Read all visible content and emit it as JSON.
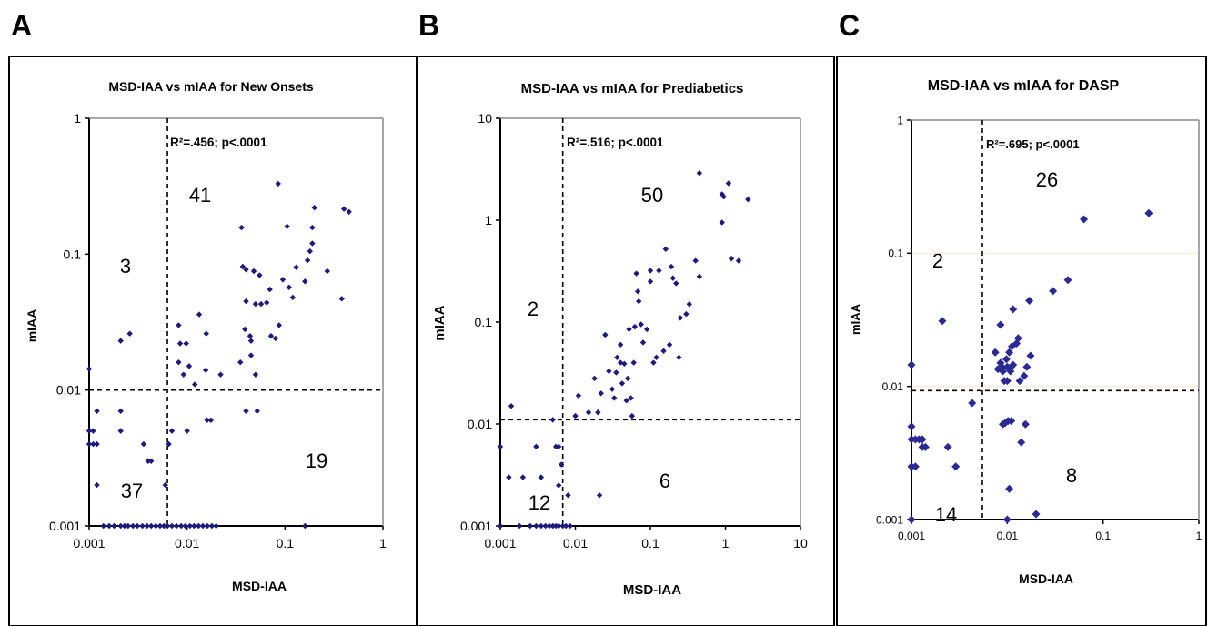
{
  "panel_letters": [
    "A",
    "B",
    "C"
  ],
  "chart_data": [
    {
      "type": "scatter",
      "title": "MSD-IAA vs mIAA for New Onsets",
      "xlabel": "MSD-IAA",
      "ylabel": "mIAA",
      "xscale": "log",
      "yscale": "log",
      "xlim": [
        0.001,
        1
      ],
      "ylim": [
        0.001,
        1
      ],
      "xticks": [
        "0.001",
        "0.01",
        "0.1",
        "1"
      ],
      "yticks": [
        "0.001",
        "0.01",
        "0.1",
        "1"
      ],
      "annotation": "R²=.456; p<.0001",
      "threshold_x": 0.0063,
      "threshold_y": 0.01,
      "quadrant_counts": [
        "41",
        "3",
        "37",
        "19"
      ],
      "marker_color": "#1f1a7a",
      "points": [
        [
          0.001,
          0.0143
        ],
        [
          0.001,
          0.005
        ],
        [
          0.001,
          0.004
        ],
        [
          0.0011,
          0.005
        ],
        [
          0.0011,
          0.004
        ],
        [
          0.0012,
          0.004
        ],
        [
          0.0012,
          0.007
        ],
        [
          0.0012,
          0.002
        ],
        [
          0.0021,
          0.023
        ],
        [
          0.0021,
          0.007
        ],
        [
          0.0021,
          0.005
        ],
        [
          0.0026,
          0.026
        ],
        [
          0.0036,
          0.004
        ],
        [
          0.004,
          0.003
        ],
        [
          0.0043,
          0.003
        ],
        [
          0.006,
          0.002
        ],
        [
          0.0065,
          0.004
        ],
        [
          0.007,
          0.005
        ],
        [
          0.0082,
          0.03
        ],
        [
          0.0082,
          0.016
        ],
        [
          0.0085,
          0.022
        ],
        [
          0.0092,
          0.013
        ],
        [
          0.0098,
          0.022
        ],
        [
          0.01,
          0.005
        ],
        [
          0.0105,
          0.015
        ],
        [
          0.012,
          0.011
        ],
        [
          0.0133,
          0.036
        ],
        [
          0.0157,
          0.026
        ],
        [
          0.0155,
          0.014
        ],
        [
          0.016,
          0.006
        ],
        [
          0.0175,
          0.006
        ],
        [
          0.022,
          0.013
        ],
        [
          0.035,
          0.016
        ],
        [
          0.036,
          0.157
        ],
        [
          0.037,
          0.081
        ],
        [
          0.039,
          0.028
        ],
        [
          0.04,
          0.077
        ],
        [
          0.04,
          0.045
        ],
        [
          0.04,
          0.007
        ],
        [
          0.044,
          0.025
        ],
        [
          0.045,
          0.023
        ],
        [
          0.045,
          0.018
        ],
        [
          0.048,
          0.075
        ],
        [
          0.05,
          0.013
        ],
        [
          0.05,
          0.043
        ],
        [
          0.052,
          0.007
        ],
        [
          0.055,
          0.07
        ],
        [
          0.057,
          0.043
        ],
        [
          0.065,
          0.044
        ],
        [
          0.07,
          0.055
        ],
        [
          0.072,
          0.025
        ],
        [
          0.08,
          0.024
        ],
        [
          0.087,
          0.03
        ],
        [
          0.085,
          0.33
        ],
        [
          0.095,
          0.065
        ],
        [
          0.105,
          0.16
        ],
        [
          0.11,
          0.057
        ],
        [
          0.12,
          0.048
        ],
        [
          0.13,
          0.08
        ],
        [
          0.16,
          0.063
        ],
        [
          0.17,
          0.09
        ],
        [
          0.18,
          0.105
        ],
        [
          0.19,
          0.12
        ],
        [
          0.19,
          0.157
        ],
        [
          0.2,
          0.22
        ],
        [
          0.27,
          0.075
        ],
        [
          0.38,
          0.047
        ],
        [
          0.4,
          0.215
        ],
        [
          0.45,
          0.205
        ],
        [
          0.16,
          0.001
        ],
        [
          0.0014,
          0.001
        ],
        [
          0.0016,
          0.001
        ],
        [
          0.0018,
          0.001
        ],
        [
          0.0021,
          0.001
        ],
        [
          0.0023,
          0.001
        ],
        [
          0.0025,
          0.001
        ],
        [
          0.0028,
          0.001
        ],
        [
          0.0031,
          0.001
        ],
        [
          0.0035,
          0.001
        ],
        [
          0.0039,
          0.001
        ],
        [
          0.0043,
          0.001
        ],
        [
          0.0048,
          0.001
        ],
        [
          0.0053,
          0.001
        ],
        [
          0.0058,
          0.001
        ],
        [
          0.0063,
          0.001
        ],
        [
          0.007,
          0.001
        ],
        [
          0.0078,
          0.001
        ],
        [
          0.0087,
          0.001
        ],
        [
          0.0096,
          0.001
        ],
        [
          0.0107,
          0.001
        ],
        [
          0.0118,
          0.001
        ],
        [
          0.0131,
          0.001
        ],
        [
          0.0145,
          0.001
        ],
        [
          0.0161,
          0.001
        ],
        [
          0.0179,
          0.001
        ],
        [
          0.0198,
          0.001
        ]
      ]
    },
    {
      "type": "scatter",
      "title": "MSD-IAA vs mIAA for Prediabetics",
      "xlabel": "MSD-IAA",
      "ylabel": "mIAA",
      "xscale": "log",
      "yscale": "log",
      "xlim": [
        0.001,
        10
      ],
      "ylim": [
        0.001,
        10
      ],
      "xticks": [
        "0.001",
        "0.01",
        "0.1",
        "1",
        "10"
      ],
      "yticks": [
        "0.001",
        "0.01",
        "0.1",
        "1",
        "10"
      ],
      "annotation": "R²=.516; p<.0001",
      "threshold_x": 0.0068,
      "threshold_y": 0.011,
      "quadrant_counts": [
        "50",
        "2",
        "12",
        "6"
      ],
      "marker_color": "#1f1a7a",
      "points": [
        [
          0.001,
          0.006
        ],
        [
          0.0013,
          0.003
        ],
        [
          0.0014,
          0.015
        ],
        [
          0.002,
          0.003
        ],
        [
          0.003,
          0.006
        ],
        [
          0.0035,
          0.003
        ],
        [
          0.005,
          0.011
        ],
        [
          0.0055,
          0.006
        ],
        [
          0.006,
          0.006
        ],
        [
          0.0065,
          0.004
        ],
        [
          0.008,
          0.002
        ],
        [
          0.006,
          0.0025
        ],
        [
          0.01,
          0.012
        ],
        [
          0.011,
          0.019
        ],
        [
          0.015,
          0.013
        ],
        [
          0.018,
          0.028
        ],
        [
          0.02,
          0.013
        ],
        [
          0.021,
          0.002
        ],
        [
          0.022,
          0.02
        ],
        [
          0.025,
          0.075
        ],
        [
          0.028,
          0.033
        ],
        [
          0.031,
          0.022
        ],
        [
          0.033,
          0.018
        ],
        [
          0.035,
          0.032
        ],
        [
          0.036,
          0.045
        ],
        [
          0.04,
          0.06
        ],
        [
          0.04,
          0.04
        ],
        [
          0.042,
          0.025
        ],
        [
          0.045,
          0.039
        ],
        [
          0.048,
          0.017
        ],
        [
          0.05,
          0.028
        ],
        [
          0.052,
          0.085
        ],
        [
          0.055,
          0.018
        ],
        [
          0.057,
          0.012
        ],
        [
          0.06,
          0.04
        ],
        [
          0.062,
          0.09
        ],
        [
          0.065,
          0.3
        ],
        [
          0.068,
          0.2
        ],
        [
          0.07,
          0.16
        ],
        [
          0.075,
          0.095
        ],
        [
          0.08,
          0.063
        ],
        [
          0.09,
          0.085
        ],
        [
          0.1,
          0.32
        ],
        [
          0.1,
          0.25
        ],
        [
          0.11,
          0.04
        ],
        [
          0.12,
          0.045
        ],
        [
          0.13,
          0.32
        ],
        [
          0.15,
          0.052
        ],
        [
          0.16,
          0.52
        ],
        [
          0.18,
          0.06
        ],
        [
          0.19,
          0.35
        ],
        [
          0.2,
          0.27
        ],
        [
          0.22,
          0.24
        ],
        [
          0.24,
          0.045
        ],
        [
          0.25,
          0.11
        ],
        [
          0.3,
          0.12
        ],
        [
          0.33,
          0.15
        ],
        [
          0.4,
          0.4
        ],
        [
          0.45,
          0.28
        ],
        [
          0.45,
          2.9
        ],
        [
          0.9,
          0.95
        ],
        [
          0.9,
          1.8
        ],
        [
          0.95,
          1.7
        ],
        [
          1.1,
          2.3
        ],
        [
          1.2,
          0.42
        ],
        [
          1.5,
          0.4
        ],
        [
          2.0,
          1.6
        ],
        [
          0.001,
          0.001
        ],
        [
          0.0018,
          0.001
        ],
        [
          0.0025,
          0.001
        ],
        [
          0.003,
          0.001
        ],
        [
          0.0035,
          0.001
        ],
        [
          0.004,
          0.001
        ],
        [
          0.0045,
          0.001
        ],
        [
          0.005,
          0.001
        ],
        [
          0.0055,
          0.001
        ],
        [
          0.006,
          0.001
        ],
        [
          0.0068,
          0.001
        ],
        [
          0.0075,
          0.001
        ],
        [
          0.0085,
          0.001
        ]
      ]
    },
    {
      "type": "scatter",
      "title": "MSD-IAA vs mIAA for DASP",
      "xlabel": "MSD-IAA",
      "ylabel": "mIAA",
      "xscale": "log",
      "yscale": "log",
      "xlim": [
        0.001,
        1
      ],
      "ylim": [
        0.001,
        1
      ],
      "xticks": [
        "0.001",
        "0.01",
        "0.1",
        "1"
      ],
      "yticks": [
        "0.001",
        "0.01",
        "0.1",
        "1"
      ],
      "annotation": "R²=.695; p<.0001",
      "threshold_x": 0.0055,
      "threshold_y": 0.0093,
      "quadrant_counts": [
        "26",
        "2",
        "14",
        "8"
      ],
      "marker_color": "#2b2a92",
      "points": [
        [
          0.001,
          0.0145
        ],
        [
          0.001,
          0.005
        ],
        [
          0.001,
          0.004
        ],
        [
          0.001,
          0.0025
        ],
        [
          0.001,
          0.001
        ],
        [
          0.0011,
          0.004
        ],
        [
          0.0011,
          0.0025
        ],
        [
          0.0012,
          0.004
        ],
        [
          0.0013,
          0.0035
        ],
        [
          0.0013,
          0.004
        ],
        [
          0.0014,
          0.0035
        ],
        [
          0.0021,
          0.031
        ],
        [
          0.0024,
          0.0035
        ],
        [
          0.0029,
          0.0025
        ],
        [
          0.0043,
          0.0075
        ],
        [
          0.0075,
          0.018
        ],
        [
          0.008,
          0.0135
        ],
        [
          0.0085,
          0.029
        ],
        [
          0.0085,
          0.015
        ],
        [
          0.0088,
          0.014
        ],
        [
          0.009,
          0.013
        ],
        [
          0.009,
          0.0052
        ],
        [
          0.0093,
          0.011
        ],
        [
          0.0095,
          0.0053
        ],
        [
          0.0098,
          0.016
        ],
        [
          0.01,
          0.011
        ],
        [
          0.01,
          0.014
        ],
        [
          0.0102,
          0.0055
        ],
        [
          0.0105,
          0.018
        ],
        [
          0.0105,
          0.0017
        ],
        [
          0.0108,
          0.013
        ],
        [
          0.011,
          0.0055
        ],
        [
          0.011,
          0.014
        ],
        [
          0.0112,
          0.02
        ],
        [
          0.0115,
          0.038
        ],
        [
          0.0115,
          0.0145
        ],
        [
          0.0125,
          0.021
        ],
        [
          0.013,
          0.023
        ],
        [
          0.0135,
          0.011
        ],
        [
          0.014,
          0.0038
        ],
        [
          0.015,
          0.012
        ],
        [
          0.0155,
          0.0052
        ],
        [
          0.016,
          0.014
        ],
        [
          0.017,
          0.044
        ],
        [
          0.0175,
          0.017
        ],
        [
          0.02,
          0.0011
        ],
        [
          0.01,
          0.001
        ],
        [
          0.03,
          0.052
        ],
        [
          0.043,
          0.063
        ],
        [
          0.063,
          0.18
        ],
        [
          0.3,
          0.2
        ]
      ]
    }
  ]
}
